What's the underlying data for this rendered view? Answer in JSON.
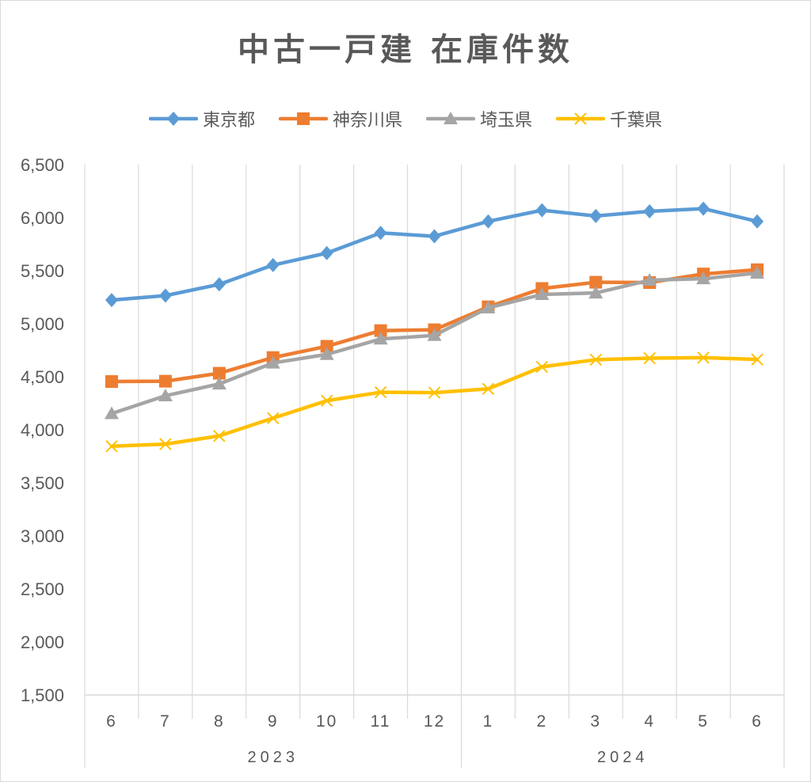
{
  "chart_data": {
    "type": "line",
    "title": "中古一戸建 在庫件数",
    "categories": [
      "6",
      "7",
      "8",
      "9",
      "10",
      "11",
      "12",
      "1",
      "2",
      "3",
      "4",
      "5",
      "6"
    ],
    "year_groups": [
      {
        "label": "2023",
        "start": 0,
        "count": 7
      },
      {
        "label": "2024",
        "start": 7,
        "count": 6
      }
    ],
    "y_ticks": [
      "1,500",
      "2,000",
      "2,500",
      "3,000",
      "3,500",
      "4,000",
      "4,500",
      "5,000",
      "5,500",
      "6,000",
      "6,500"
    ],
    "ylim": [
      1500,
      6500
    ],
    "y_step": 500,
    "grid": "vertical",
    "legend_position": "top",
    "series": [
      {
        "name": "東京都",
        "color": "#5b9bd5",
        "marker": "diamond",
        "values": [
          5223,
          5265,
          5371,
          5553,
          5666,
          5856,
          5825,
          5965,
          6070,
          6016,
          6060,
          6085,
          5965
        ]
      },
      {
        "name": "神奈川県",
        "color": "#ed7d31",
        "marker": "square",
        "values": [
          4455,
          4458,
          4533,
          4681,
          4787,
          4935,
          4943,
          5159,
          5332,
          5391,
          5388,
          5469,
          5509
        ]
      },
      {
        "name": "埼玉県",
        "color": "#a5a5a5",
        "marker": "triangle",
        "values": [
          4153,
          4321,
          4432,
          4630,
          4711,
          4856,
          4890,
          5150,
          5276,
          5290,
          5410,
          5424,
          5478
        ]
      },
      {
        "name": "千葉県",
        "color": "#ffc000",
        "marker": "x",
        "values": [
          3845,
          3865,
          3942,
          4110,
          4274,
          4354,
          4350,
          4386,
          4593,
          4661,
          4675,
          4680,
          4663
        ]
      }
    ]
  }
}
